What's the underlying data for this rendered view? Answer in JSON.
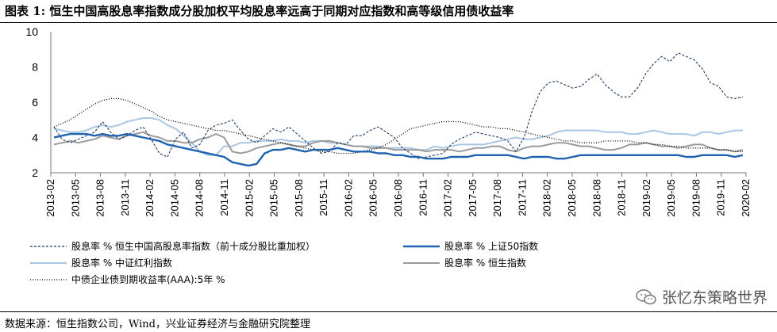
{
  "title": "图表 1:  恒生中国高股息率指数成分股加权平均股息率远高于同期对应指数和高等级信用债收益率",
  "source": "数据来源：恒生指数公司，Wind，兴业证券经济与金融研究院整理",
  "watermark": "张忆东策略世界",
  "chart_data": {
    "type": "line",
    "ylim": [
      2,
      10
    ],
    "yticks": [
      2,
      4,
      6,
      8,
      10
    ],
    "xticks": [
      "2013-02",
      "2013-05",
      "2013-08",
      "2013-11",
      "2014-02",
      "2014-05",
      "2014-08",
      "2014-11",
      "2015-02",
      "2015-05",
      "2015-08",
      "2015-11",
      "2016-02",
      "2016-05",
      "2016-08",
      "2016-11",
      "2017-02",
      "2017-05",
      "2017-08",
      "2017-11",
      "2018-02",
      "2018-05",
      "2018-08",
      "2018-11",
      "2019-02",
      "2019-05",
      "2019-08",
      "2019-11",
      "2020-02"
    ],
    "grid": false,
    "legend_position": "bottom",
    "series": [
      {
        "name": "股息率 % 恒生中国高股息率指数（前十成分股比重加权）",
        "color": "#1f3864",
        "style": "dashed",
        "values": [
          4.6,
          3.9,
          3.7,
          3.9,
          4.1,
          4.3,
          4.9,
          4.3,
          3.9,
          4.1,
          4.4,
          4.6,
          3.9,
          3.1,
          2.9,
          3.9,
          4.3,
          3.4,
          3.6,
          4.4,
          4.7,
          4.8,
          5.0,
          4.4,
          3.9,
          3.7,
          4.1,
          4.5,
          4.3,
          4.6,
          4.2,
          3.8,
          3.4,
          3.1,
          3.2,
          3.7,
          3.6,
          4.1,
          4.1,
          4.4,
          4.6,
          4.3,
          4.0,
          3.4,
          3.1,
          2.8,
          2.9,
          3.0,
          3.1,
          3.6,
          3.9,
          4.1,
          4.3,
          4.2,
          4.1,
          4.0,
          3.8,
          3.2,
          4.0,
          5.5,
          6.6,
          7.1,
          7.2,
          7.0,
          6.8,
          6.9,
          7.3,
          7.6,
          7.0,
          6.6,
          6.3,
          6.3,
          6.8,
          7.6,
          8.2,
          8.6,
          8.3,
          8.8,
          8.6,
          8.4,
          7.9,
          7.1,
          6.9,
          6.3,
          6.2,
          6.3
        ]
      },
      {
        "name": "股息率 % 上证50指数",
        "color": "#1f63b0",
        "style": "solid",
        "values": [
          4.0,
          4.1,
          4.2,
          4.2,
          4.2,
          4.1,
          4.2,
          4.1,
          4.1,
          4.2,
          4.1,
          4.0,
          3.9,
          3.8,
          3.6,
          3.5,
          3.4,
          3.3,
          3.2,
          3.1,
          3.0,
          2.9,
          2.6,
          2.5,
          2.4,
          2.5,
          3.1,
          3.3,
          3.3,
          3.4,
          3.3,
          3.2,
          3.3,
          3.3,
          3.3,
          3.4,
          3.3,
          3.2,
          3.2,
          3.2,
          3.1,
          3.1,
          3.0,
          3.0,
          2.9,
          2.9,
          2.8,
          2.8,
          2.8,
          2.9,
          2.9,
          2.9,
          3.0,
          3.0,
          3.0,
          3.0,
          3.0,
          2.9,
          2.8,
          2.9,
          2.9,
          2.9,
          2.8,
          2.8,
          2.9,
          3.0,
          3.0,
          3.0,
          3.0,
          3.0,
          3.0,
          3.0,
          3.0,
          3.0,
          3.0,
          3.0,
          3.0,
          3.0,
          2.9,
          2.9,
          3.0,
          3.0,
          3.0,
          3.0,
          2.9,
          3.0
        ]
      },
      {
        "name": "股息率 % 中证红利指数",
        "color": "#a9c6e3",
        "style": "solid",
        "values": [
          4.5,
          4.4,
          4.3,
          4.3,
          4.4,
          4.6,
          4.7,
          4.6,
          4.7,
          4.9,
          5.0,
          5.1,
          5.1,
          5.0,
          4.7,
          4.5,
          4.1,
          3.7,
          3.2,
          3.0,
          3.0,
          3.5,
          3.5,
          3.7,
          3.7,
          3.8,
          3.8,
          3.8,
          3.9,
          3.8,
          3.8,
          3.7,
          3.8,
          3.8,
          3.7,
          3.7,
          3.6,
          3.5,
          3.5,
          3.5,
          3.5,
          3.4,
          3.4,
          3.4,
          3.4,
          3.3,
          3.3,
          3.5,
          3.4,
          3.5,
          3.6,
          3.6,
          3.6,
          3.6,
          3.7,
          3.8,
          3.9,
          4.0,
          3.9,
          3.9,
          4.0,
          4.1,
          4.3,
          4.4,
          4.4,
          4.4,
          4.4,
          4.4,
          4.3,
          4.3,
          4.3,
          4.2,
          4.2,
          4.3,
          4.4,
          4.3,
          4.2,
          4.2,
          4.2,
          4.1,
          4.3,
          4.3,
          4.2,
          4.3,
          4.4,
          4.4
        ]
      },
      {
        "name": "股息率 % 恒生指数",
        "color": "#9b9b9b",
        "style": "solid",
        "values": [
          3.6,
          3.7,
          3.8,
          3.7,
          3.8,
          3.9,
          4.1,
          4.0,
          3.9,
          4.1,
          4.2,
          4.3,
          4.1,
          4.0,
          3.8,
          3.8,
          3.7,
          3.7,
          3.9,
          4.0,
          4.2,
          4.0,
          3.2,
          3.1,
          3.2,
          3.4,
          3.5,
          3.6,
          3.7,
          3.6,
          3.5,
          3.5,
          3.7,
          3.8,
          3.8,
          3.7,
          3.6,
          3.5,
          3.5,
          3.4,
          3.4,
          3.4,
          3.3,
          3.3,
          3.3,
          3.3,
          3.2,
          3.3,
          3.3,
          3.3,
          3.2,
          3.3,
          3.4,
          3.4,
          3.5,
          3.5,
          3.3,
          3.2,
          3.4,
          3.5,
          3.5,
          3.6,
          3.7,
          3.7,
          3.6,
          3.5,
          3.5,
          3.4,
          3.3,
          3.3,
          3.4,
          3.6,
          3.6,
          3.7,
          3.6,
          3.5,
          3.5,
          3.4,
          3.5,
          3.6,
          3.6,
          3.4,
          3.3,
          3.3,
          3.2,
          3.3
        ]
      },
      {
        "name": "中债企业债到期收益率(AAA):5年 %",
        "color": "#000000",
        "style": "dotted",
        "values": [
          4.6,
          4.8,
          5.0,
          5.3,
          5.6,
          5.9,
          6.1,
          6.2,
          6.2,
          6.1,
          5.9,
          5.7,
          5.5,
          5.2,
          5.0,
          4.9,
          4.8,
          4.7,
          4.6,
          4.5,
          4.4,
          4.4,
          4.3,
          4.2,
          4.1,
          4.0,
          3.9,
          3.8,
          3.7,
          3.6,
          3.5,
          3.4,
          3.3,
          3.2,
          3.2,
          3.1,
          3.1,
          3.1,
          3.2,
          3.3,
          3.4,
          3.6,
          3.9,
          4.2,
          4.5,
          4.6,
          4.7,
          4.8,
          4.9,
          4.9,
          4.9,
          4.8,
          4.7,
          4.6,
          4.6,
          4.5,
          4.5,
          4.4,
          4.3,
          4.2,
          4.1,
          4.0,
          3.9,
          3.8,
          3.8,
          3.7,
          3.7,
          3.7,
          3.8,
          3.8,
          3.8,
          3.8,
          3.7,
          3.7,
          3.6,
          3.6,
          3.5,
          3.5,
          3.4,
          3.4,
          3.4,
          3.4,
          3.3,
          3.3,
          3.2,
          3.2
        ]
      }
    ]
  }
}
